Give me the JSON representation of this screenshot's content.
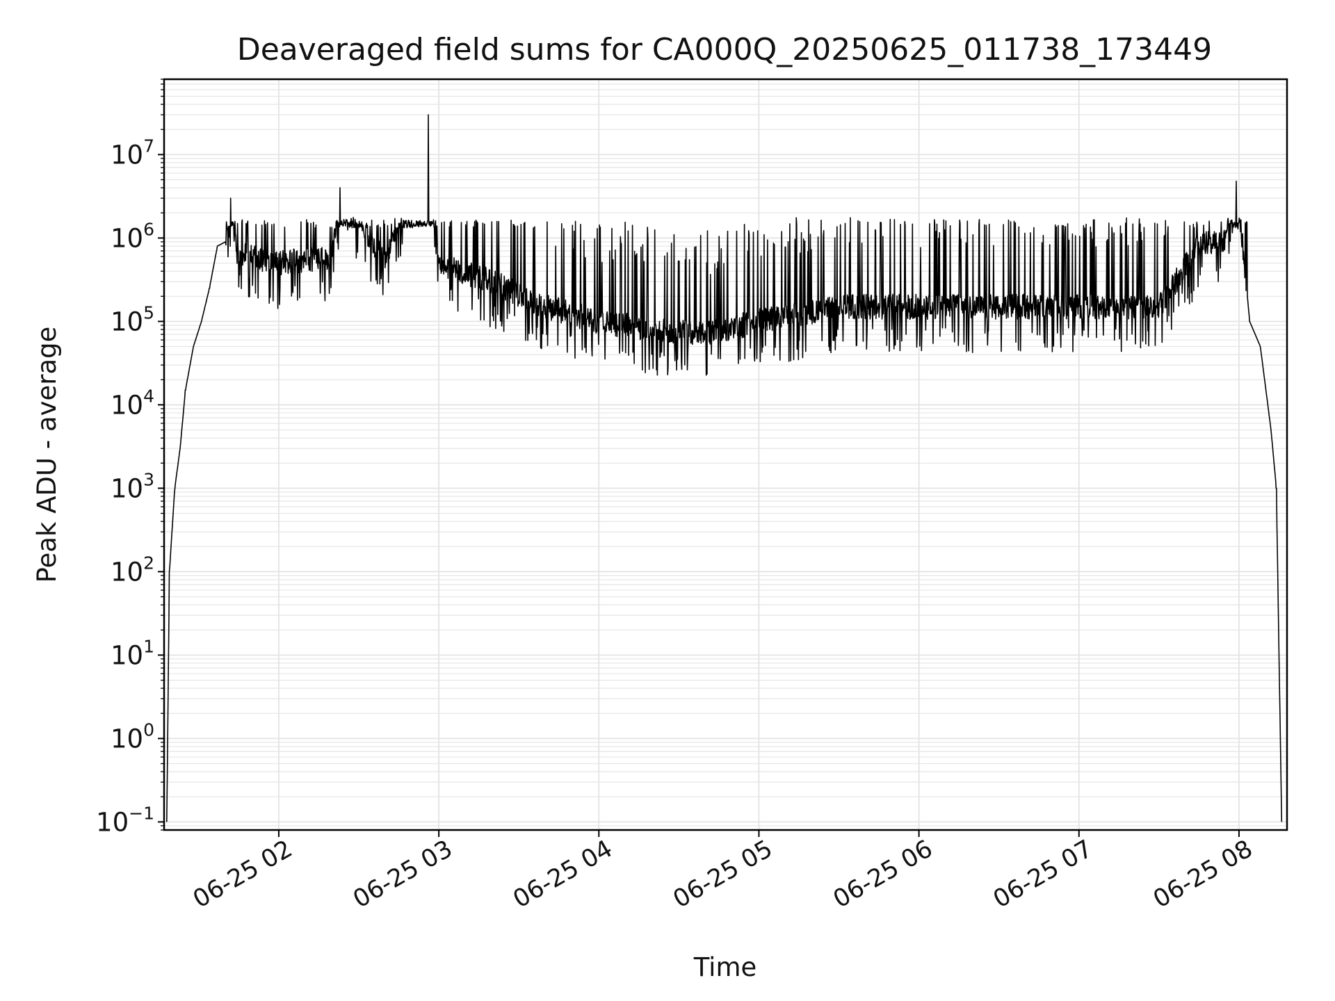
{
  "chart_data": {
    "type": "line",
    "title": "Deaveraged field sums for CA000Q_20250625_011738_173449",
    "xlabel": "Time",
    "ylabel": "Peak ADU - average",
    "yscale": "log",
    "ylim": [
      0.08,
      80000000
    ],
    "xlim": [
      "06-25 01:17",
      "06-25 08:18"
    ],
    "grid": true,
    "legend": "none",
    "line_color": "#000000",
    "x_ticks": [
      "06-25 02",
      "06-25 03",
      "06-25 04",
      "06-25 05",
      "06-25 06",
      "06-25 07",
      "06-25 08"
    ],
    "y_ticks": [
      {
        "base": "10",
        "exp": "−1",
        "value": 0.1
      },
      {
        "base": "10",
        "exp": "0",
        "value": 1
      },
      {
        "base": "10",
        "exp": "1",
        "value": 10
      },
      {
        "base": "10",
        "exp": "2",
        "value": 100
      },
      {
        "base": "10",
        "exp": "3",
        "value": 1000
      },
      {
        "base": "10",
        "exp": "4",
        "value": 10000
      },
      {
        "base": "10",
        "exp": "5",
        "value": 100000
      },
      {
        "base": "10",
        "exp": "6",
        "value": 1000000
      },
      {
        "base": "10",
        "exp": "7",
        "value": 10000000
      }
    ],
    "series": [
      {
        "points": [
          [
            "06-25 01:18",
            0.1
          ],
          [
            "06-25 01:19",
            100
          ],
          [
            "06-25 01:21",
            1000
          ],
          [
            "06-25 01:23",
            3000
          ],
          [
            "06-25 01:25",
            15000
          ],
          [
            "06-25 01:28",
            50000
          ],
          [
            "06-25 01:31",
            100000
          ],
          [
            "06-25 01:34",
            250000
          ],
          [
            "06-25 01:37",
            800000
          ],
          [
            "06-25 01:40",
            900000
          ],
          [
            "06-25 01:42",
            3000000
          ],
          [
            "06-25 01:44",
            700000
          ],
          [
            "06-25 01:50",
            600000
          ],
          [
            "06-25 02:00",
            500000
          ],
          [
            "06-25 02:20",
            600000
          ],
          [
            "06-25 02:23",
            4000000
          ],
          [
            "06-25 02:40",
            500000
          ],
          [
            "06-25 02:56",
            30000000
          ],
          [
            "06-25 03:00",
            500000
          ],
          [
            "06-25 03:20",
            300000
          ],
          [
            "06-25 03:40",
            150000
          ],
          [
            "06-25 04:00",
            100000
          ],
          [
            "06-25 04:20",
            80000
          ],
          [
            "06-25 04:40",
            70000
          ],
          [
            "06-25 05:00",
            100000
          ],
          [
            "06-25 05:30",
            150000
          ],
          [
            "06-25 06:00",
            150000
          ],
          [
            "06-25 06:30",
            150000
          ],
          [
            "06-25 07:00",
            150000
          ],
          [
            "06-25 07:30",
            150000
          ],
          [
            "06-25 07:45",
            800000
          ],
          [
            "06-25 07:55",
            1000000
          ],
          [
            "06-25 07:59",
            4800000
          ],
          [
            "06-25 08:02",
            500000
          ],
          [
            "06-25 08:04",
            100000
          ],
          [
            "06-25 08:08",
            50000
          ],
          [
            "06-25 08:12",
            5000
          ],
          [
            "06-25 08:14",
            1000
          ],
          [
            "06-25 08:16",
            0.1
          ]
        ]
      }
    ]
  }
}
